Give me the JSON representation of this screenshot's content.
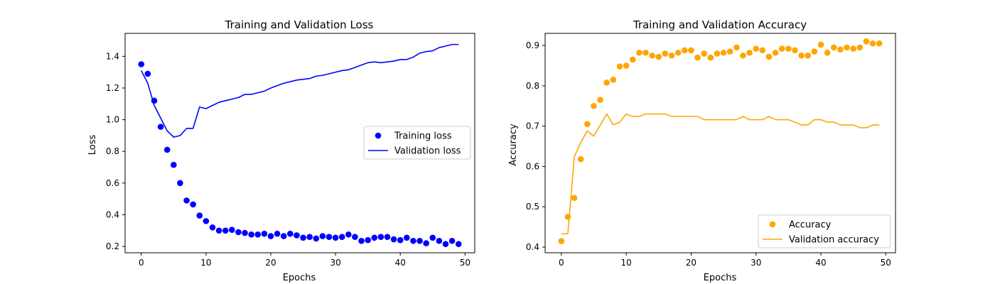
{
  "chart_data": [
    {
      "type": "line",
      "title": "Training and Validation Loss",
      "xlabel": "Epochs",
      "ylabel": "Loss",
      "xlim": [
        -2.5,
        51.5
      ],
      "ylim": [
        0.16,
        1.545
      ],
      "xticks": [
        "0",
        "10",
        "20",
        "30",
        "40",
        "50"
      ],
      "yticks": [
        "0.2",
        "0.4",
        "0.6",
        "0.8",
        "1.0",
        "1.2",
        "1.4"
      ],
      "legend_position": "center-right",
      "grid": false,
      "series": [
        {
          "name": "Training loss",
          "style": "points",
          "color": "#0000ff",
          "x": [
            0,
            1,
            2,
            3,
            4,
            5,
            6,
            7,
            8,
            9,
            10,
            11,
            12,
            13,
            14,
            15,
            16,
            17,
            18,
            19,
            20,
            21,
            22,
            23,
            24,
            25,
            26,
            27,
            28,
            29,
            30,
            31,
            32,
            33,
            34,
            35,
            36,
            37,
            38,
            39,
            40,
            41,
            42,
            43,
            44,
            45,
            46,
            47,
            48,
            49
          ],
          "y": [
            1.35,
            1.29,
            1.12,
            0.955,
            0.81,
            0.715,
            0.6,
            0.49,
            0.465,
            0.395,
            0.36,
            0.32,
            0.3,
            0.3,
            0.305,
            0.29,
            0.285,
            0.275,
            0.275,
            0.28,
            0.265,
            0.28,
            0.265,
            0.28,
            0.27,
            0.255,
            0.26,
            0.25,
            0.265,
            0.26,
            0.255,
            0.26,
            0.275,
            0.26,
            0.235,
            0.24,
            0.255,
            0.26,
            0.26,
            0.245,
            0.24,
            0.255,
            0.235,
            0.235,
            0.22,
            0.255,
            0.235,
            0.215,
            0.235,
            0.215
          ]
        },
        {
          "name": "Validation loss",
          "style": "line",
          "color": "#0000ff",
          "x": [
            0,
            1,
            2,
            3,
            4,
            5,
            6,
            7,
            8,
            9,
            10,
            11,
            12,
            13,
            14,
            15,
            16,
            17,
            18,
            19,
            20,
            21,
            22,
            23,
            24,
            25,
            26,
            27,
            28,
            29,
            30,
            31,
            32,
            33,
            34,
            35,
            36,
            37,
            38,
            39,
            40,
            41,
            42,
            43,
            44,
            45,
            46,
            47,
            48,
            49
          ],
          "y": [
            1.31,
            1.23,
            1.09,
            1.01,
            0.93,
            0.89,
            0.9,
            0.945,
            0.945,
            1.08,
            1.07,
            1.09,
            1.11,
            1.12,
            1.13,
            1.14,
            1.16,
            1.16,
            1.17,
            1.18,
            1.2,
            1.215,
            1.23,
            1.24,
            1.25,
            1.255,
            1.26,
            1.275,
            1.28,
            1.29,
            1.3,
            1.31,
            1.315,
            1.33,
            1.345,
            1.36,
            1.365,
            1.36,
            1.365,
            1.37,
            1.38,
            1.38,
            1.395,
            1.42,
            1.43,
            1.435,
            1.455,
            1.465,
            1.475,
            1.475
          ]
        }
      ]
    },
    {
      "type": "line",
      "title": "Training and Validation Accuracy",
      "xlabel": "Epochs",
      "ylabel": "Accuracy",
      "xlim": [
        -2.5,
        51.5
      ],
      "ylim": [
        0.386,
        0.93
      ],
      "xticks": [
        "0",
        "10",
        "20",
        "30",
        "40",
        "50"
      ],
      "yticks": [
        "0.4",
        "0.5",
        "0.6",
        "0.7",
        "0.8",
        "0.9"
      ],
      "legend_position": "lower-right",
      "grid": false,
      "series": [
        {
          "name": "Accuracy",
          "style": "points",
          "color": "#ffa500",
          "x": [
            0,
            1,
            2,
            3,
            4,
            5,
            6,
            7,
            8,
            9,
            10,
            11,
            12,
            13,
            14,
            15,
            16,
            17,
            18,
            19,
            20,
            21,
            22,
            23,
            24,
            25,
            26,
            27,
            28,
            29,
            30,
            31,
            32,
            33,
            34,
            35,
            36,
            37,
            38,
            39,
            40,
            41,
            42,
            43,
            44,
            45,
            46,
            47,
            48,
            49
          ],
          "y": [
            0.415,
            0.475,
            0.522,
            0.618,
            0.705,
            0.75,
            0.765,
            0.808,
            0.815,
            0.848,
            0.85,
            0.865,
            0.882,
            0.882,
            0.875,
            0.872,
            0.88,
            0.875,
            0.882,
            0.888,
            0.888,
            0.87,
            0.88,
            0.87,
            0.88,
            0.882,
            0.885,
            0.895,
            0.875,
            0.882,
            0.892,
            0.888,
            0.872,
            0.882,
            0.892,
            0.892,
            0.888,
            0.875,
            0.875,
            0.885,
            0.902,
            0.882,
            0.895,
            0.89,
            0.895,
            0.892,
            0.895,
            0.91,
            0.905,
            0.905
          ]
        },
        {
          "name": "Validation accuracy",
          "style": "line",
          "color": "#ffa500",
          "x": [
            0,
            1,
            2,
            3,
            4,
            5,
            6,
            7,
            8,
            9,
            10,
            11,
            12,
            13,
            14,
            15,
            16,
            17,
            18,
            19,
            20,
            21,
            22,
            23,
            24,
            25,
            26,
            27,
            28,
            29,
            30,
            31,
            32,
            33,
            34,
            35,
            36,
            37,
            38,
            39,
            40,
            41,
            42,
            43,
            44,
            45,
            46,
            47,
            48,
            49
          ],
          "y": [
            0.433,
            0.433,
            0.624,
            0.66,
            0.688,
            0.675,
            0.703,
            0.73,
            0.703,
            0.71,
            0.73,
            0.724,
            0.724,
            0.73,
            0.73,
            0.73,
            0.73,
            0.724,
            0.724,
            0.724,
            0.724,
            0.724,
            0.716,
            0.716,
            0.716,
            0.716,
            0.716,
            0.716,
            0.724,
            0.716,
            0.716,
            0.716,
            0.724,
            0.716,
            0.716,
            0.716,
            0.71,
            0.703,
            0.703,
            0.716,
            0.716,
            0.71,
            0.71,
            0.703,
            0.703,
            0.703,
            0.696,
            0.696,
            0.703,
            0.703
          ]
        }
      ]
    }
  ]
}
